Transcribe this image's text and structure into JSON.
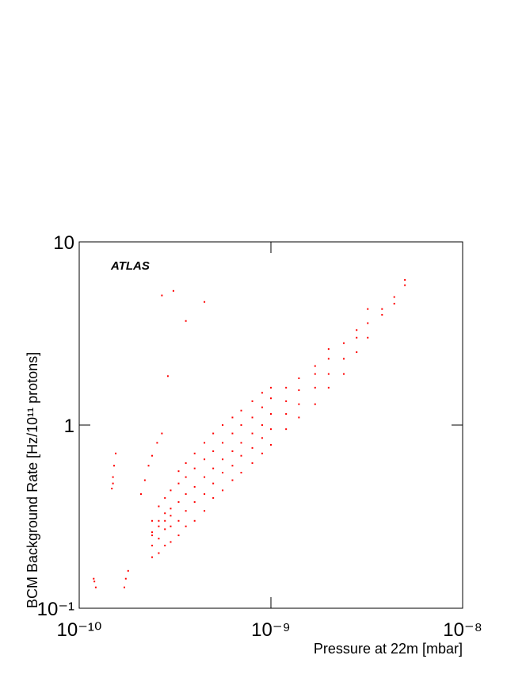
{
  "chart_data": {
    "type": "scatter",
    "annotation": "ATLAS",
    "xlabel": "Pressure at 22m [mbar]",
    "ylabel": "BCM Background Rate [Hz/10¹¹ protons]",
    "xscale": "log",
    "yscale": "log",
    "xlim": [
      1e-10,
      1e-08
    ],
    "ylim": [
      0.1,
      10
    ],
    "xticks": [
      {
        "value": 1e-10,
        "label": "10⁻¹⁰"
      },
      {
        "value": 1e-09,
        "label": "10⁻⁹"
      },
      {
        "value": 1e-08,
        "label": "10⁻⁸"
      }
    ],
    "yticks": [
      {
        "value": 0.1,
        "label": "10⁻¹"
      },
      1,
      10
    ],
    "color": "#ff0000",
    "x": [
      1.2e-10,
      1.22e-10,
      1.19e-10,
      1.48e-10,
      1.5e-10,
      1.52e-10,
      1.55e-10,
      1.5e-10,
      1.72e-10,
      1.75e-10,
      1.8e-10,
      2.1e-10,
      2.2e-10,
      2.3e-10,
      2.4e-10,
      2.55e-10,
      2.7e-10,
      2.7e-10,
      3.1e-10,
      3.6e-10,
      4.5e-10,
      2.9e-10,
      2.4e-10,
      2.4e-10,
      2.4e-10,
      2.4e-10,
      2.4e-10,
      2.6e-10,
      2.6e-10,
      2.6e-10,
      2.6e-10,
      2.6e-10,
      2.8e-10,
      2.8e-10,
      2.8e-10,
      2.8e-10,
      2.8e-10,
      3e-10,
      3e-10,
      3e-10,
      3e-10,
      3e-10,
      3.3e-10,
      3.3e-10,
      3.3e-10,
      3.3e-10,
      3.3e-10,
      3.6e-10,
      3.6e-10,
      3.6e-10,
      3.6e-10,
      3.6e-10,
      4e-10,
      4e-10,
      4e-10,
      4e-10,
      4e-10,
      4.5e-10,
      4.5e-10,
      4.5e-10,
      4.5e-10,
      4.5e-10,
      5e-10,
      5e-10,
      5e-10,
      5e-10,
      5e-10,
      5.6e-10,
      5.6e-10,
      5.6e-10,
      5.6e-10,
      5.6e-10,
      6.3e-10,
      6.3e-10,
      6.3e-10,
      6.3e-10,
      6.3e-10,
      7e-10,
      7e-10,
      7e-10,
      7e-10,
      7e-10,
      8e-10,
      8e-10,
      8e-10,
      8e-10,
      8e-10,
      9e-10,
      9e-10,
      9e-10,
      9e-10,
      9e-10,
      1e-09,
      1e-09,
      1e-09,
      1e-09,
      1e-09,
      1.2e-09,
      1.2e-09,
      1.2e-09,
      1.2e-09,
      1.4e-09,
      1.4e-09,
      1.4e-09,
      1.4e-09,
      1.7e-09,
      1.7e-09,
      1.7e-09,
      1.7e-09,
      2e-09,
      2e-09,
      2e-09,
      2e-09,
      2.4e-09,
      2.4e-09,
      2.4e-09,
      2.8e-09,
      2.8e-09,
      2.8e-09,
      3.2e-09,
      3.2e-09,
      3.2e-09,
      3.8e-09,
      3.8e-09,
      4.4e-09,
      4.4e-09,
      5e-09,
      5e-09
    ],
    "values": [
      0.14,
      0.13,
      0.145,
      0.45,
      0.52,
      0.6,
      0.7,
      0.48,
      0.13,
      0.145,
      0.16,
      0.42,
      0.5,
      0.6,
      0.68,
      0.8,
      0.9,
      5.1,
      5.4,
      3.7,
      4.7,
      1.85,
      0.19,
      0.22,
      0.26,
      0.3,
      0.25,
      0.2,
      0.24,
      0.3,
      0.36,
      0.28,
      0.22,
      0.27,
      0.33,
      0.4,
      0.3,
      0.23,
      0.28,
      0.35,
      0.44,
      0.32,
      0.25,
      0.3,
      0.38,
      0.48,
      0.56,
      0.28,
      0.34,
      0.42,
      0.52,
      0.62,
      0.3,
      0.38,
      0.46,
      0.58,
      0.7,
      0.34,
      0.42,
      0.52,
      0.65,
      0.8,
      0.4,
      0.48,
      0.58,
      0.72,
      0.9,
      0.44,
      0.55,
      0.65,
      0.8,
      1.0,
      0.5,
      0.6,
      0.72,
      0.9,
      1.1,
      0.55,
      0.68,
      0.8,
      1.0,
      1.2,
      0.62,
      0.75,
      0.9,
      1.1,
      1.35,
      0.7,
      0.85,
      1.0,
      1.25,
      1.5,
      0.78,
      0.95,
      1.15,
      1.4,
      1.6,
      0.95,
      1.15,
      1.35,
      1.6,
      1.1,
      1.3,
      1.55,
      1.8,
      1.3,
      1.6,
      1.9,
      2.1,
      1.6,
      1.9,
      2.3,
      2.6,
      1.9,
      2.3,
      2.8,
      2.5,
      3.0,
      3.3,
      3.0,
      3.6,
      4.3,
      4.0,
      4.3,
      4.6,
      5.0,
      5.8,
      6.2
    ]
  }
}
